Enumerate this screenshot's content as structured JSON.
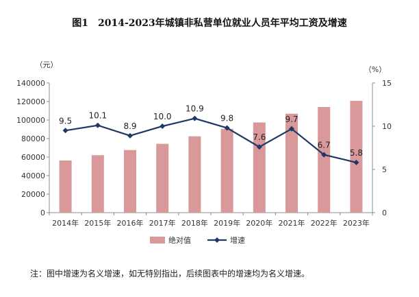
{
  "chart_data": {
    "type": "bar",
    "title": "图1　2014-2023年城镇非私营单位就业人员年平均工资及增速",
    "categories": [
      "2014年",
      "2015年",
      "2016年",
      "2017年",
      "2018年",
      "2019年",
      "2020年",
      "2021年",
      "2022年",
      "2023年"
    ],
    "series": [
      {
        "name": "绝对值",
        "type": "bar",
        "axis": "left",
        "color": "#d9999a",
        "values": [
          56360,
          62029,
          67569,
          74318,
          82413,
          90501,
          97379,
          106837,
          114029,
          120698
        ]
      },
      {
        "name": "增速",
        "type": "line",
        "axis": "right",
        "color": "#1f3864",
        "values": [
          9.5,
          10.1,
          8.9,
          10.0,
          10.9,
          9.8,
          7.6,
          9.7,
          6.7,
          5.8
        ],
        "labels": [
          "9.5",
          "10.1",
          "8.9",
          "10.0",
          "10.9",
          "9.8",
          "7.6",
          "9.7",
          "6.7",
          "5.8"
        ]
      }
    ],
    "y_left": {
      "unit": "（元）",
      "min": 0,
      "max": 140000,
      "ticks": [
        "0",
        "20000",
        "40000",
        "60000",
        "80000",
        "100000",
        "120000",
        "140000"
      ]
    },
    "y_right": {
      "unit": "（%）",
      "min": 0,
      "max": 15,
      "ticks": [
        "0",
        "5",
        "10",
        "15"
      ]
    },
    "legend_placement": "bottom-center",
    "grid": false
  },
  "note": "注：图中增速为名义增速，如无特别指出，后续图表中的增速均为名义增速。"
}
